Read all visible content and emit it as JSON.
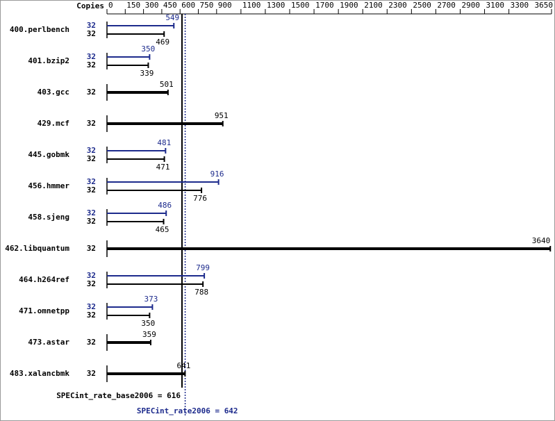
{
  "chart_data": {
    "type": "bar",
    "orientation": "horizontal",
    "copies_label": "Copies",
    "categories": [
      "400.perlbench",
      "401.bzip2",
      "403.gcc",
      "429.mcf",
      "445.gobmk",
      "456.hmmer",
      "458.sjeng",
      "462.libquantum",
      "464.h264ref",
      "471.omnetpp",
      "473.astar",
      "483.xalancbmk"
    ],
    "series": [
      {
        "color": "#1c2a8c",
        "copies": [
          32,
          32,
          null,
          null,
          32,
          32,
          32,
          null,
          32,
          32,
          null,
          null
        ],
        "values": [
          549,
          350,
          null,
          null,
          481,
          916,
          486,
          null,
          799,
          373,
          null,
          null
        ]
      },
      {
        "color": "#000000",
        "copies": [
          32,
          32,
          32,
          32,
          32,
          32,
          32,
          32,
          32,
          32,
          32,
          32
        ],
        "values": [
          469,
          339,
          501,
          951,
          471,
          776,
          465,
          3640,
          788,
          350,
          359,
          641
        ]
      }
    ],
    "reference_lines": [
      {
        "label": "SPECint_rate_base2006 = 616",
        "value": 616,
        "color": "#000000",
        "style": "solid"
      },
      {
        "label": "SPECint_rate2006 = 642",
        "value": 642,
        "color": "#1c2a8c",
        "style": "dotted"
      }
    ],
    "xlim": [
      0,
      3650
    ],
    "xticks": [
      0,
      150,
      300,
      450,
      600,
      750,
      900,
      1100,
      1300,
      1500,
      1700,
      1900,
      2100,
      2300,
      2500,
      2700,
      2900,
      3100,
      3300,
      3650
    ]
  }
}
